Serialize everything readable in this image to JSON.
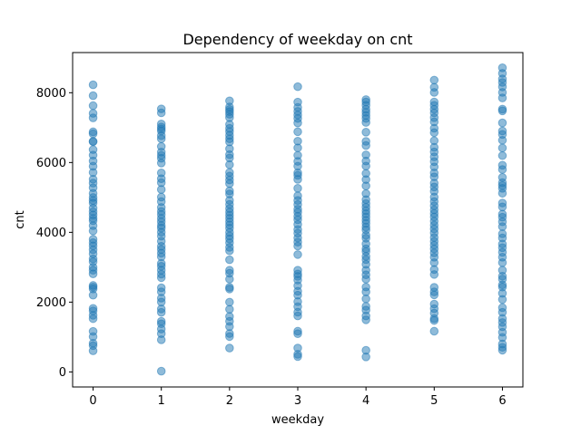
{
  "chart_data": {
    "type": "scatter",
    "title": "Dependency of weekday on cnt",
    "xlabel": "weekday",
    "ylabel": "cnt",
    "xlim": [
      -0.3,
      6.3
    ],
    "ylim": [
      -431,
      9151
    ],
    "xticks": [
      0,
      1,
      2,
      3,
      4,
      5,
      6
    ],
    "yticks": [
      0,
      2000,
      4000,
      6000,
      8000
    ],
    "grid": false,
    "marker_color": "#1f77b4",
    "marker_alpha": 0.5,
    "series": [
      {
        "values": [
          {
            "x": 0,
            "y": [
              8227,
              7916,
              7629,
              7410,
              7280,
              6880,
              6824,
              6598,
              6606,
              6370,
              6211,
              6043,
              5893,
              5715,
              5521,
              5409,
              5277,
              5117,
              4998,
              4913,
              4840,
              4694,
              4590,
              4498,
              4401,
              4333,
              4191,
              4040,
              3800,
              3702,
              3611,
              3500,
              3385,
              3240,
              3157,
              2998,
              2913,
              2810,
              2478,
              2432,
              2377,
              2200,
              1820,
              1749,
              1623,
              1526,
              1162,
              1011,
              822,
              754,
              605
            ]
          },
          {
            "x": 1,
            "y": [
              7538,
              7424,
              7105,
              7018,
              6960,
              6904,
              6770,
              6680,
              6460,
              6300,
              6206,
              6121,
              5985,
              5702,
              5537,
              5422,
              5228,
              5010,
              4881,
              4713,
              4600,
              4508,
              4400,
              4301,
              4195,
              4121,
              4002,
              3891,
              3744,
              3600,
              3509,
              3402,
              3300,
              3110,
              3028,
              2914,
              2802,
              2701,
              2411,
              2295,
              2114,
              2002,
              1805,
              1706,
              1450,
              1380,
              1230,
              1096,
              920,
              22
            ]
          },
          {
            "x": 2,
            "y": [
              7767,
              7591,
              7520,
              7458,
              7382,
              7286,
              7094,
              6978,
              6888,
              6780,
              6680,
              6591,
              6394,
              6226,
              6130,
              5938,
              5717,
              5610,
              5500,
              5396,
              5186,
              5099,
              4917,
              4800,
              4680,
              4580,
              4490,
              4400,
              4300,
              4211,
              4120,
              3998,
              3899,
              3810,
              3700,
              3570,
              3471,
              3214,
              2913,
              2827,
              2660,
              2424,
              2376,
              2000,
              1795,
              1589,
              1450,
              1300,
              1100,
              1013,
              683
            ]
          },
          {
            "x": 3,
            "y": [
              8173,
              7732,
              7580,
              7466,
              7363,
              7261,
              7134,
              6883,
              6612,
              6421,
              6207,
              6034,
              5895,
              5705,
              5633,
              5517,
              5261,
              5046,
              4913,
              4796,
              4660,
              4574,
              4458,
              4362,
              4226,
              4081,
              3974,
              3840,
              3720,
              3607,
              3363,
              2914,
              2808,
              2739,
              2632,
              2471,
              2311,
              2199,
              2014,
              1870,
              1712,
              1606,
              1167,
              1096,
              685,
              506,
              441
            ]
          },
          {
            "x": 4,
            "y": [
              7804,
              7735,
              7641,
              7526,
              7440,
              7349,
              7261,
              7148,
              6870,
              6606,
              6488,
              6220,
              6042,
              5898,
              5688,
              5512,
              5330,
              5109,
              4938,
              4824,
              4720,
              4620,
              4533,
              4441,
              4343,
              4255,
              4151,
              4069,
              3915,
              3830,
              3669,
              3529,
              3450,
              3312,
              3218,
              3082,
              2914,
              2783,
              2660,
              2432,
              2294,
              2094,
              1878,
              1771,
              1605,
              1493,
              620,
              431
            ]
          },
          {
            "x": 5,
            "y": [
              8362,
              8156,
              8009,
              7736,
              7638,
              7525,
              7424,
              7286,
              7165,
              6983,
              6857,
              6625,
              6436,
              6304,
              6163,
              6027,
              5875,
              5702,
              5590,
              5410,
              5299,
              5175,
              5010,
              4882,
              4760,
              4646,
              4540,
              4440,
              4320,
              4205,
              4098,
              3982,
              3853,
              3740,
              3633,
              3525,
              3411,
              3287,
              3131,
              2934,
              2792,
              2424,
              2294,
              2208,
              1944,
              1812,
              1685,
              1528,
              1474,
              1167
            ]
          },
          {
            "x": 6,
            "y": [
              8714,
              8555,
              8395,
              8294,
              8167,
              8009,
              7851,
              7530,
              7481,
              7137,
              6904,
              6805,
              6639,
              6417,
              6197,
              5923,
              5801,
              5573,
              5423,
              5342,
              5260,
              5119,
              4840,
              4728,
              4522,
              4433,
              4302,
              4163,
              3958,
              3838,
              3666,
              3560,
              3427,
              3287,
              3131,
              2914,
              2743,
              2660,
              2496,
              2431,
              2252,
              2077,
              1842,
              1708,
              1530,
              1416,
              1296,
              1135,
              986,
              801,
              705,
              623
            ]
          }
        ]
      }
    ]
  }
}
